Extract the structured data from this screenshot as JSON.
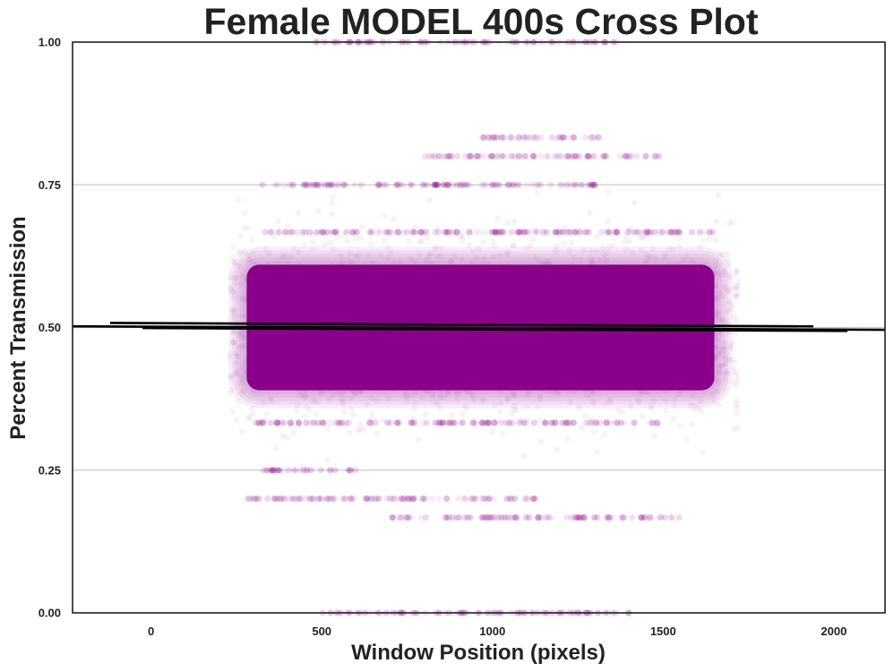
{
  "chart_data": {
    "type": "scatter",
    "title": "Female MODEL 400s Cross Plot",
    "xlabel": "Window Position (pixels)",
    "ylabel": "Percent Transmission",
    "xlim": [
      -230,
      2150
    ],
    "ylim": [
      0,
      1
    ],
    "xticks": [
      0,
      500,
      1000,
      1500,
      2000
    ],
    "xtick_labels": [
      "0",
      "500",
      "1000",
      "1500",
      "2000"
    ],
    "yticks": [
      0,
      0.25,
      0.5,
      0.75,
      1.0
    ],
    "ytick_labels": [
      "0.00",
      "0.25",
      "0.50",
      "0.75",
      "1.00"
    ],
    "grid": "horizontal",
    "legend": "none",
    "series": [
      {
        "kind": "scatter-density",
        "color": "#8b008b",
        "core_x_range": [
          280,
          1650
        ],
        "core_y_range": [
          0.39,
          0.61
        ],
        "halo_x_range": [
          230,
          1720
        ],
        "halo_y_range": [
          0.22,
          0.75
        ],
        "dense_bands": [
          {
            "y": 1.0,
            "x_range": [
              480,
              1380
            ]
          },
          {
            "y": 0.833,
            "x_range": [
              950,
              1320
            ]
          },
          {
            "y": 0.8,
            "x_range": [
              800,
              1500
            ]
          },
          {
            "y": 0.75,
            "x_range": [
              300,
              1300
            ]
          },
          {
            "y": 0.667,
            "x_range": [
              300,
              1650
            ]
          },
          {
            "y": 0.333,
            "x_range": [
              300,
              1500
            ]
          },
          {
            "y": 0.25,
            "x_range": [
              300,
              600
            ]
          },
          {
            "y": 0.2,
            "x_range": [
              280,
              1150
            ]
          },
          {
            "y": 0.167,
            "x_range": [
              700,
              1550
            ]
          },
          {
            "y": 0.0,
            "x_range": [
              500,
              1400
            ]
          }
        ]
      },
      {
        "kind": "regression-lines",
        "color": "#000000",
        "lines": [
          {
            "x": [
              -120,
              1940
            ],
            "y": [
              0.508,
              0.502
            ]
          },
          {
            "x": [
              -230,
              2150
            ],
            "y": [
              0.502,
              0.496
            ]
          },
          {
            "x": [
              -25,
              2040
            ],
            "y": [
              0.499,
              0.494
            ]
          }
        ]
      }
    ]
  }
}
